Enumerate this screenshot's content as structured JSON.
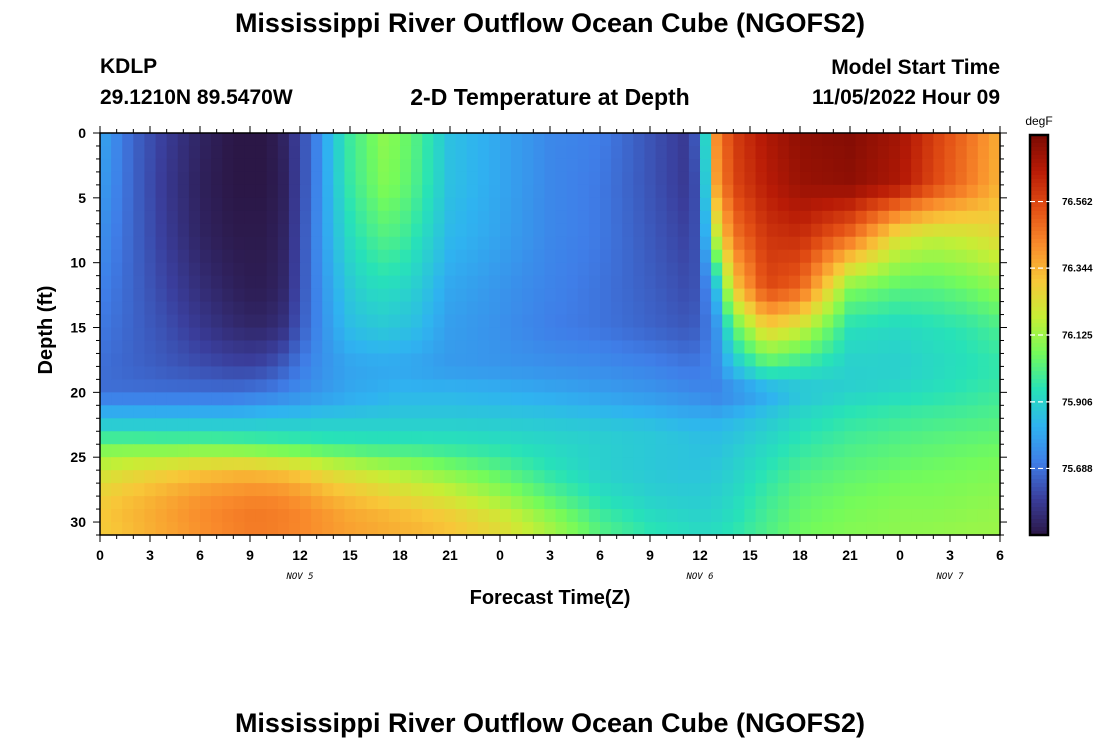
{
  "header": {
    "title": "Mississippi River Outflow Ocean Cube (NGOFS2)",
    "station_id": "KDLP",
    "coordinates": "29.1210N  89.5470W",
    "subtitle": "2-D Temperature at Depth",
    "model_start_label": "Model Start Time",
    "model_start_value": "11/05/2022 Hour 09"
  },
  "footer": {
    "title": "Mississippi River Outflow Ocean Cube (NGOFS2)"
  },
  "chart_data": {
    "type": "heatmap",
    "xlabel": "Forecast Time(Z)",
    "ylabel": "Depth (ft)",
    "x_ticks": [
      "0",
      "3",
      "6",
      "9",
      "12",
      "15",
      "18",
      "21",
      "0",
      "3",
      "6",
      "9",
      "12",
      "15",
      "18",
      "21",
      "0",
      "3",
      "6"
    ],
    "x_range_hours": [
      0,
      54
    ],
    "date_labels": [
      {
        "text": "NOV 5",
        "hour": 12
      },
      {
        "text": "NOV 6",
        "hour": 36
      },
      {
        "text": "NOV 7",
        "hour": 51
      }
    ],
    "y_ticks": [
      "0",
      "5",
      "10",
      "15",
      "20",
      "25",
      "30"
    ],
    "y_range_ft": [
      0,
      31
    ],
    "y_inverted": true,
    "colorbar": {
      "unit": "degF",
      "tick_labels": [
        "76.562",
        "76.344",
        "76.125",
        "75.906",
        "75.688"
      ],
      "tick_values": [
        76.562,
        76.344,
        76.125,
        75.906,
        75.688
      ],
      "range": [
        75.47,
        76.78
      ],
      "colors": [
        "#2b1746",
        "#3a3e9c",
        "#3f7ee8",
        "#2fb3f0",
        "#27e2b8",
        "#74fb5a",
        "#c7ee35",
        "#f8c738",
        "#f98a2b",
        "#e24e14",
        "#b81b06",
        "#7a0a03"
      ]
    },
    "temperature_grid": {
      "depth_ft": [
        0,
        4,
        8,
        12,
        15,
        18,
        20,
        21,
        22,
        23,
        24,
        26,
        28,
        30,
        31
      ],
      "time_hours": [
        0,
        2,
        4,
        6,
        8,
        9,
        10,
        11,
        12,
        13,
        14,
        15,
        16,
        17,
        18,
        19,
        21,
        24,
        27,
        30,
        33,
        35,
        36,
        37,
        38,
        40,
        42,
        45,
        48,
        50,
        52,
        54
      ],
      "values_degF": [
        [
          75.8,
          75.66,
          75.58,
          75.51,
          75.47,
          75.47,
          75.47,
          75.51,
          75.6,
          75.72,
          75.88,
          75.98,
          76.04,
          76.1,
          76.07,
          76.01,
          75.86,
          75.8,
          75.73,
          75.71,
          75.63,
          75.58,
          75.66,
          76.42,
          76.58,
          76.68,
          76.74,
          76.76,
          76.7,
          76.58,
          76.48,
          76.35
        ],
        [
          75.78,
          75.66,
          75.57,
          75.5,
          75.47,
          75.47,
          75.47,
          75.5,
          75.6,
          75.72,
          75.87,
          75.97,
          76.03,
          76.08,
          76.06,
          76.0,
          75.86,
          75.8,
          75.73,
          75.7,
          75.63,
          75.58,
          75.63,
          76.38,
          76.56,
          76.66,
          76.72,
          76.74,
          76.68,
          76.56,
          76.46,
          76.34
        ],
        [
          75.75,
          75.66,
          75.58,
          75.51,
          75.48,
          75.48,
          75.48,
          75.51,
          75.61,
          75.73,
          75.85,
          75.93,
          75.98,
          76.01,
          76.0,
          75.95,
          75.84,
          75.79,
          75.73,
          75.7,
          75.64,
          75.6,
          75.63,
          76.18,
          76.46,
          76.6,
          76.62,
          76.48,
          76.22,
          76.18,
          76.2,
          76.25
        ],
        [
          75.72,
          75.66,
          75.6,
          75.54,
          75.5,
          75.49,
          75.49,
          75.52,
          75.62,
          75.72,
          75.82,
          75.88,
          75.92,
          75.93,
          75.92,
          75.89,
          75.8,
          75.76,
          75.72,
          75.69,
          75.65,
          75.62,
          75.63,
          75.86,
          76.28,
          76.56,
          76.5,
          76.08,
          76.02,
          76.02,
          76.05,
          76.1
        ],
        [
          75.7,
          75.66,
          75.62,
          75.57,
          75.53,
          75.52,
          75.52,
          75.55,
          75.64,
          75.72,
          75.8,
          75.85,
          75.87,
          75.88,
          75.87,
          75.85,
          75.78,
          75.75,
          75.71,
          75.69,
          75.66,
          75.64,
          75.65,
          75.76,
          76.02,
          76.28,
          76.2,
          75.94,
          75.92,
          75.94,
          75.96,
          76.0
        ],
        [
          75.68,
          75.66,
          75.64,
          75.62,
          75.6,
          75.6,
          75.61,
          75.65,
          75.7,
          75.74,
          75.77,
          75.79,
          75.8,
          75.8,
          75.8,
          75.79,
          75.77,
          75.76,
          75.75,
          75.74,
          75.72,
          75.7,
          75.7,
          75.74,
          75.86,
          76.0,
          75.96,
          75.9,
          75.9,
          75.92,
          75.94,
          75.96
        ],
        [
          75.68,
          75.68,
          75.68,
          75.68,
          75.68,
          75.69,
          75.7,
          75.72,
          75.74,
          75.76,
          75.78,
          75.8,
          75.81,
          75.82,
          75.83,
          75.83,
          75.83,
          75.82,
          75.8,
          75.78,
          75.76,
          75.74,
          75.73,
          75.72,
          75.74,
          75.8,
          75.86,
          75.9,
          75.92,
          75.94,
          75.96,
          75.98
        ],
        [
          75.76,
          75.76,
          75.76,
          75.76,
          75.76,
          75.77,
          75.78,
          75.79,
          75.8,
          75.81,
          75.82,
          75.83,
          75.84,
          75.85,
          75.86,
          75.86,
          75.86,
          75.85,
          75.84,
          75.82,
          75.8,
          75.78,
          75.77,
          75.76,
          75.78,
          75.84,
          75.9,
          75.94,
          75.96,
          75.97,
          75.98,
          76.0
        ],
        [
          75.86,
          75.86,
          75.86,
          75.86,
          75.86,
          75.86,
          75.87,
          75.87,
          75.87,
          75.88,
          75.88,
          75.88,
          75.88,
          75.88,
          75.88,
          75.88,
          75.88,
          75.88,
          75.87,
          75.86,
          75.84,
          75.82,
          75.82,
          75.82,
          75.84,
          75.88,
          75.92,
          75.96,
          75.98,
          75.99,
          76.0,
          76.01
        ],
        [
          75.92,
          75.92,
          75.92,
          75.92,
          75.92,
          75.92,
          75.92,
          75.92,
          75.92,
          75.92,
          75.92,
          75.92,
          75.92,
          75.92,
          75.92,
          75.92,
          75.92,
          75.91,
          75.9,
          75.89,
          75.88,
          75.86,
          75.85,
          75.85,
          75.86,
          75.9,
          75.94,
          75.98,
          76.0,
          76.01,
          76.02,
          76.03
        ],
        [
          76.05,
          76.05,
          76.04,
          76.04,
          76.03,
          76.02,
          76.01,
          76.0,
          75.99,
          75.98,
          75.97,
          75.97,
          75.96,
          75.96,
          75.96,
          75.96,
          75.95,
          75.94,
          75.92,
          75.9,
          75.88,
          75.87,
          75.86,
          75.86,
          75.88,
          75.92,
          75.96,
          76.0,
          76.02,
          76.03,
          76.04,
          76.05
        ],
        [
          76.2,
          76.24,
          76.27,
          76.3,
          76.32,
          76.32,
          76.31,
          76.3,
          76.28,
          76.25,
          76.22,
          76.2,
          76.18,
          76.16,
          76.14,
          76.12,
          76.08,
          76.02,
          75.95,
          75.9,
          75.88,
          75.87,
          75.87,
          75.88,
          75.9,
          75.95,
          76.0,
          76.03,
          76.05,
          76.06,
          76.07,
          76.08
        ],
        [
          76.28,
          76.32,
          76.36,
          76.4,
          76.42,
          76.43,
          76.43,
          76.42,
          76.4,
          76.37,
          76.34,
          76.32,
          76.3,
          76.28,
          76.26,
          76.24,
          76.2,
          76.12,
          76.02,
          75.94,
          75.9,
          75.89,
          75.89,
          75.9,
          75.92,
          75.98,
          76.03,
          76.06,
          76.08,
          76.08,
          76.09,
          76.1
        ],
        [
          76.3,
          76.34,
          76.38,
          76.42,
          76.45,
          76.46,
          76.46,
          76.45,
          76.44,
          76.42,
          76.4,
          76.38,
          76.37,
          76.36,
          76.35,
          76.34,
          76.31,
          76.24,
          76.12,
          76.0,
          75.94,
          75.92,
          75.91,
          75.92,
          75.94,
          76.0,
          76.05,
          76.08,
          76.1,
          76.1,
          76.11,
          76.12
        ],
        [
          76.28,
          76.32,
          76.36,
          76.4,
          76.43,
          76.44,
          76.44,
          76.43,
          76.42,
          76.4,
          76.38,
          76.37,
          76.36,
          76.35,
          76.34,
          76.33,
          76.3,
          76.24,
          76.14,
          76.02,
          75.96,
          75.94,
          75.93,
          75.94,
          75.96,
          76.01,
          76.06,
          76.09,
          76.1,
          76.11,
          76.12,
          76.12
        ]
      ]
    }
  }
}
